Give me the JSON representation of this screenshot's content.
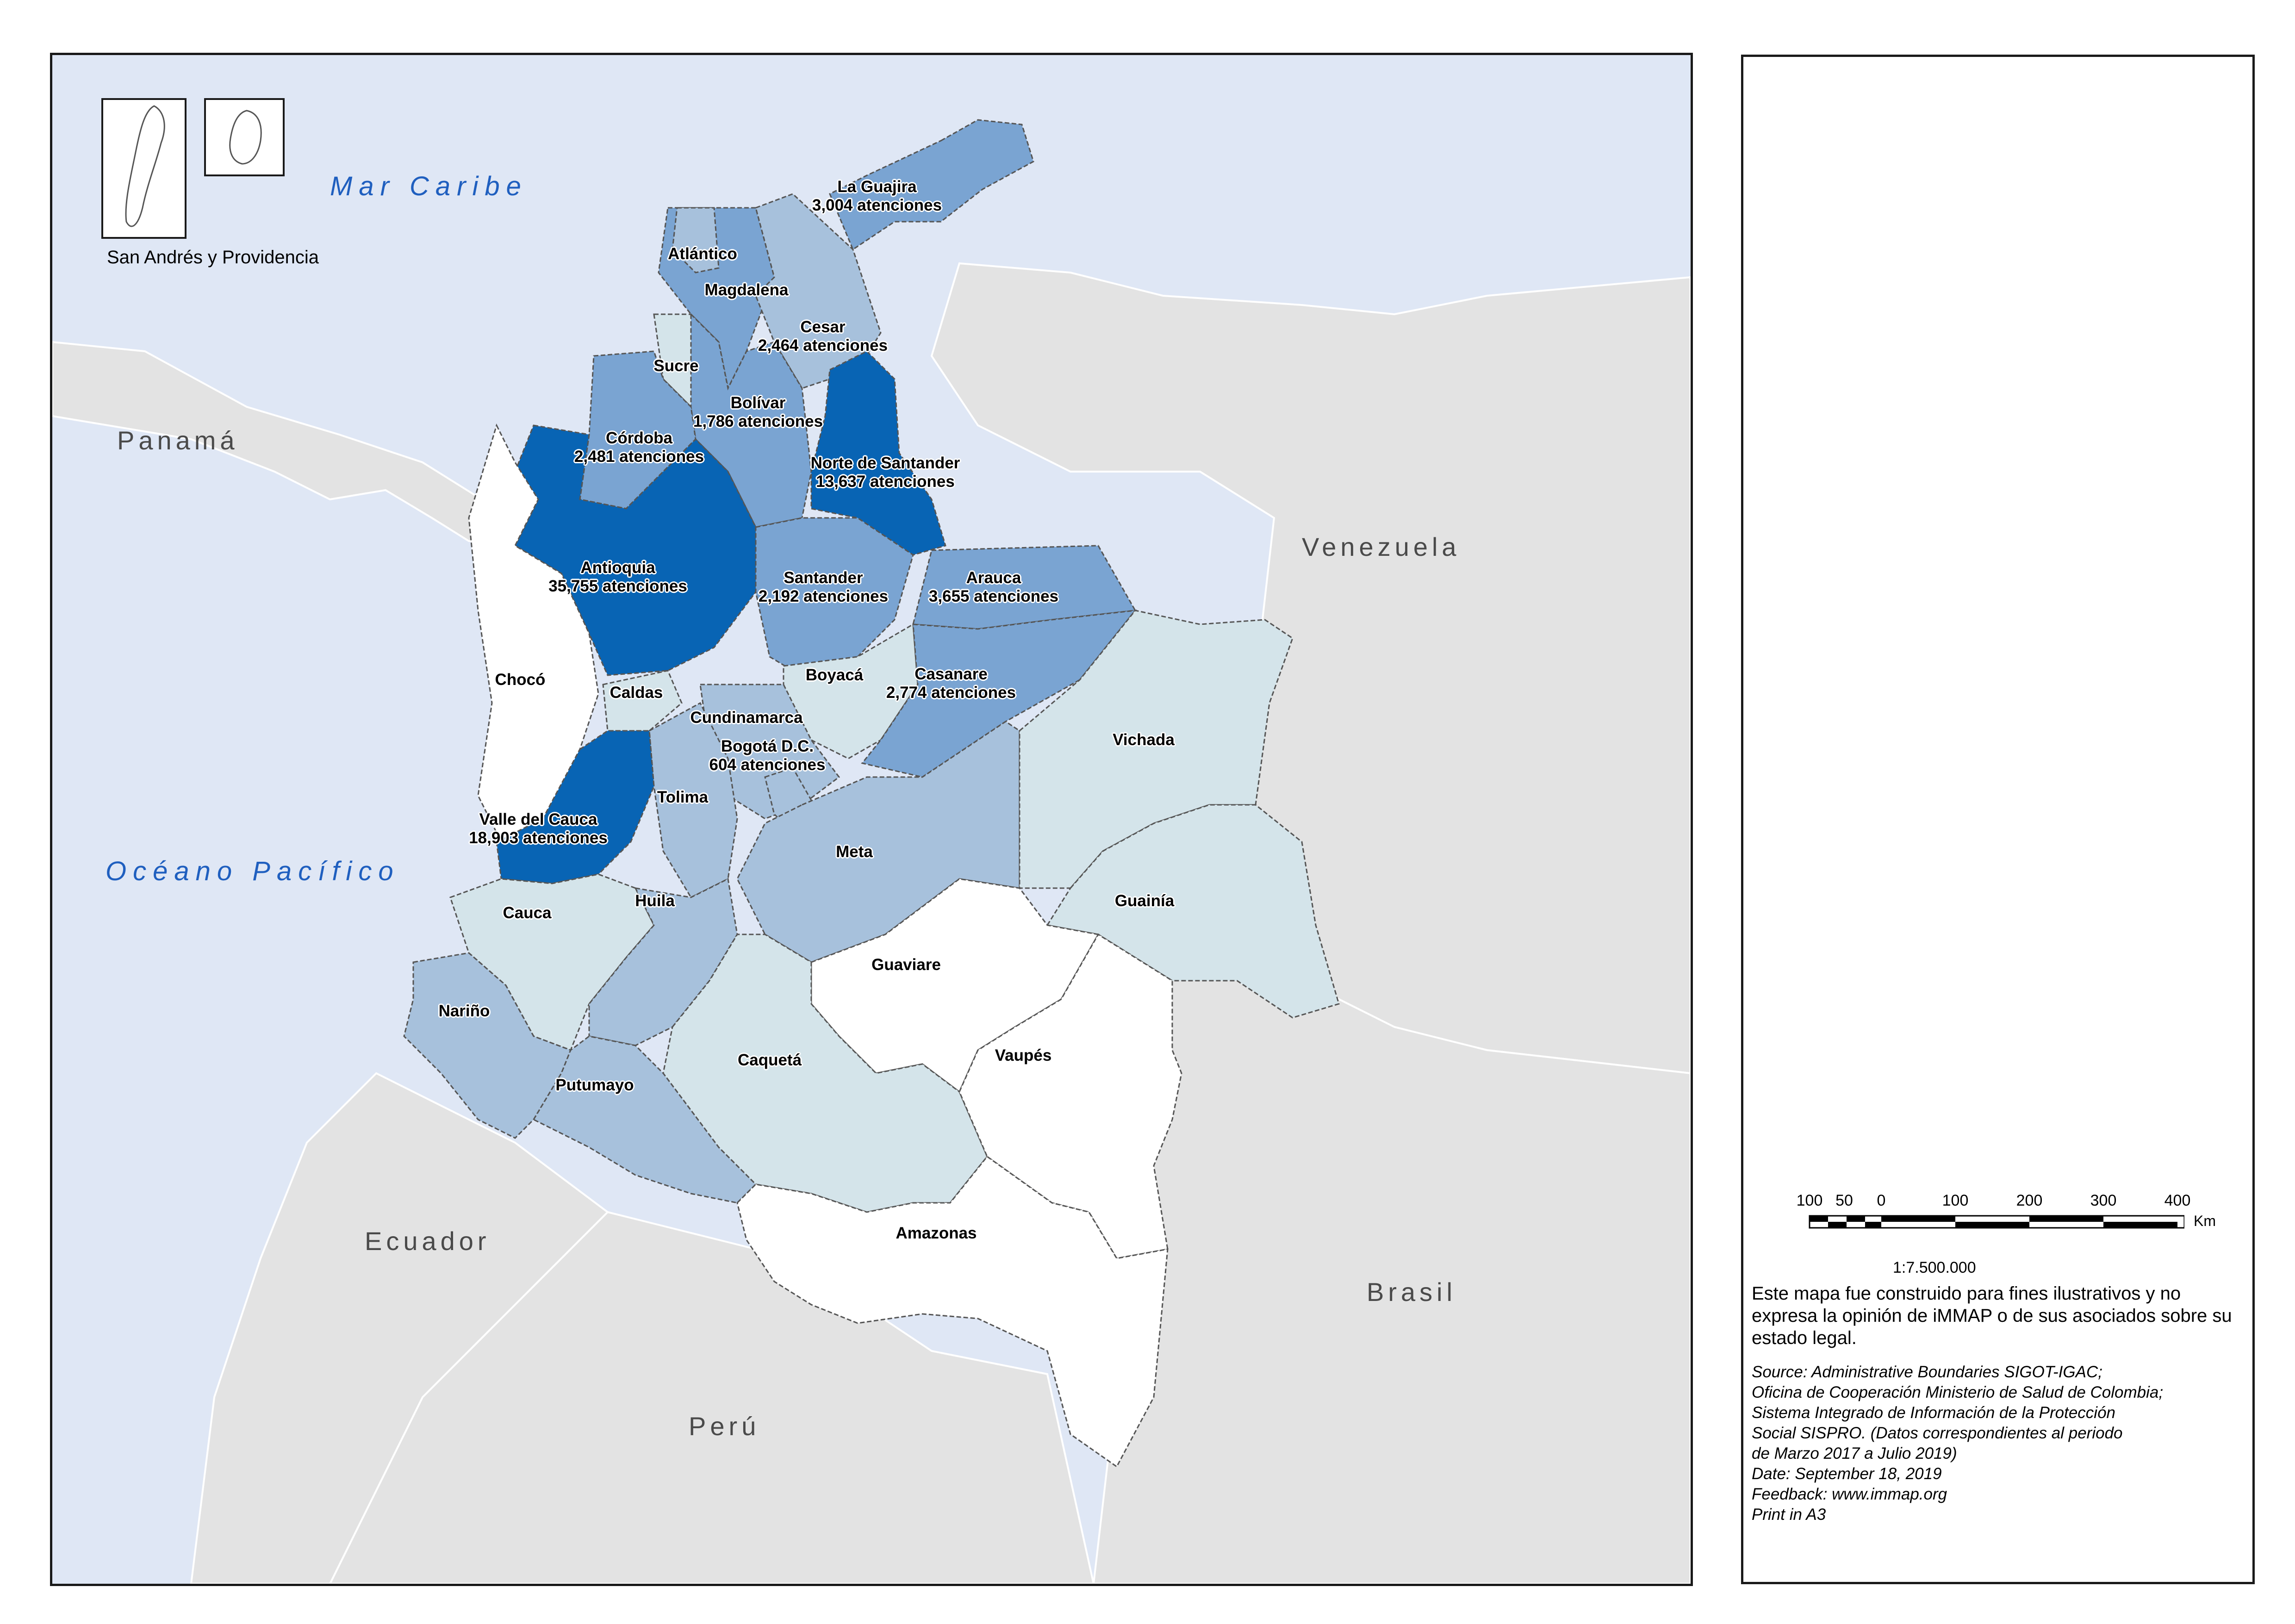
{
  "map": {
    "sea_labels": {
      "caribbean": "Mar Caribe",
      "pacific": "Océano Pacífico"
    },
    "country_labels": {
      "panama": "Panamá",
      "venezuela": "Venezuela",
      "ecuador": "Ecuador",
      "peru": "Perú",
      "brasil": "Brasil"
    },
    "inset_label": "San  Andrés y Providencia",
    "departments": [
      {
        "name": "La Guajira",
        "value_text": "3,004 atenciones",
        "value": 3004
      },
      {
        "name": "Atlántico",
        "value_text": "",
        "value": null
      },
      {
        "name": "Magdalena",
        "value_text": "",
        "value": null
      },
      {
        "name": "Cesar",
        "value_text": "2,464 atenciones",
        "value": 2464
      },
      {
        "name": "Sucre",
        "value_text": "",
        "value": null
      },
      {
        "name": "Bolívar",
        "value_text": "1,786 atenciones",
        "value": 1786
      },
      {
        "name": "Córdoba",
        "value_text": "2,481 atenciones",
        "value": 2481
      },
      {
        "name": "Norte de Santander",
        "value_text": "13,637 atenciones",
        "value": 13637
      },
      {
        "name": "Antioquia",
        "value_text": "35,755 atenciones",
        "value": 35755
      },
      {
        "name": "Santander",
        "value_text": "2,192 atenciones",
        "value": 2192
      },
      {
        "name": "Arauca",
        "value_text": "3,655 atenciones",
        "value": 3655
      },
      {
        "name": "Chocó",
        "value_text": "",
        "value": null
      },
      {
        "name": "Caldas",
        "value_text": "",
        "value": null
      },
      {
        "name": "Boyacá",
        "value_text": "",
        "value": null
      },
      {
        "name": "Casanare",
        "value_text": "2,774 atenciones",
        "value": 2774
      },
      {
        "name": "Cundinamarca",
        "value_text": "",
        "value": null
      },
      {
        "name": "Bogotá D.C.",
        "value_text": "604 atenciones",
        "value": 604
      },
      {
        "name": "Vichada",
        "value_text": "",
        "value": null
      },
      {
        "name": "Tolima",
        "value_text": "",
        "value": null
      },
      {
        "name": "Valle del Cauca",
        "value_text": "18,903 atenciones",
        "value": 18903
      },
      {
        "name": "Meta",
        "value_text": "",
        "value": null
      },
      {
        "name": "Cauca",
        "value_text": "",
        "value": null
      },
      {
        "name": "Huila",
        "value_text": "",
        "value": null
      },
      {
        "name": "Guainía",
        "value_text": "",
        "value": null
      },
      {
        "name": "Guaviare",
        "value_text": "",
        "value": null
      },
      {
        "name": "Nariño",
        "value_text": "",
        "value": null
      },
      {
        "name": "Vaupés",
        "value_text": "",
        "value": null
      },
      {
        "name": "Caquetá",
        "value_text": "",
        "value": null
      },
      {
        "name": "Putumayo",
        "value_text": "",
        "value": null
      },
      {
        "name": "Amazonas",
        "value_text": "",
        "value": null
      }
    ],
    "colors": {
      "sea": "#dfe7f5",
      "land": "#e3e3e3",
      "class_highest": "#0864b4",
      "class_high": "#7aa4d2",
      "class_mid": "#a7c1dc",
      "class_low": "#d4e4ea",
      "class_none": "#ffffff"
    }
  },
  "scale_bar": {
    "ticks": [
      "100",
      "50",
      "0",
      "100",
      "200",
      "300",
      "400"
    ],
    "unit": "Km",
    "ratio": "1:7.500.000"
  },
  "disclaimer": "Este mapa fue construido para fines ilustrativos y no expresa la opinión de iMMAP o de sus asociados sobre su estado legal.",
  "source_lines": [
    "Source: Administrative Boundaries SIGOT-IGAC;",
    "Oficina de Cooperación Ministerio de Salud de Colombia;",
    "Sistema Integrado de Información de la Protección",
    "Social SISPRO. (Datos correspondientes al periodo",
    "de Marzo 2017 a Julio 2019)",
    "Date: September 18, 2019",
    "Feedback: www.immap.org",
    "Print in A3"
  ]
}
